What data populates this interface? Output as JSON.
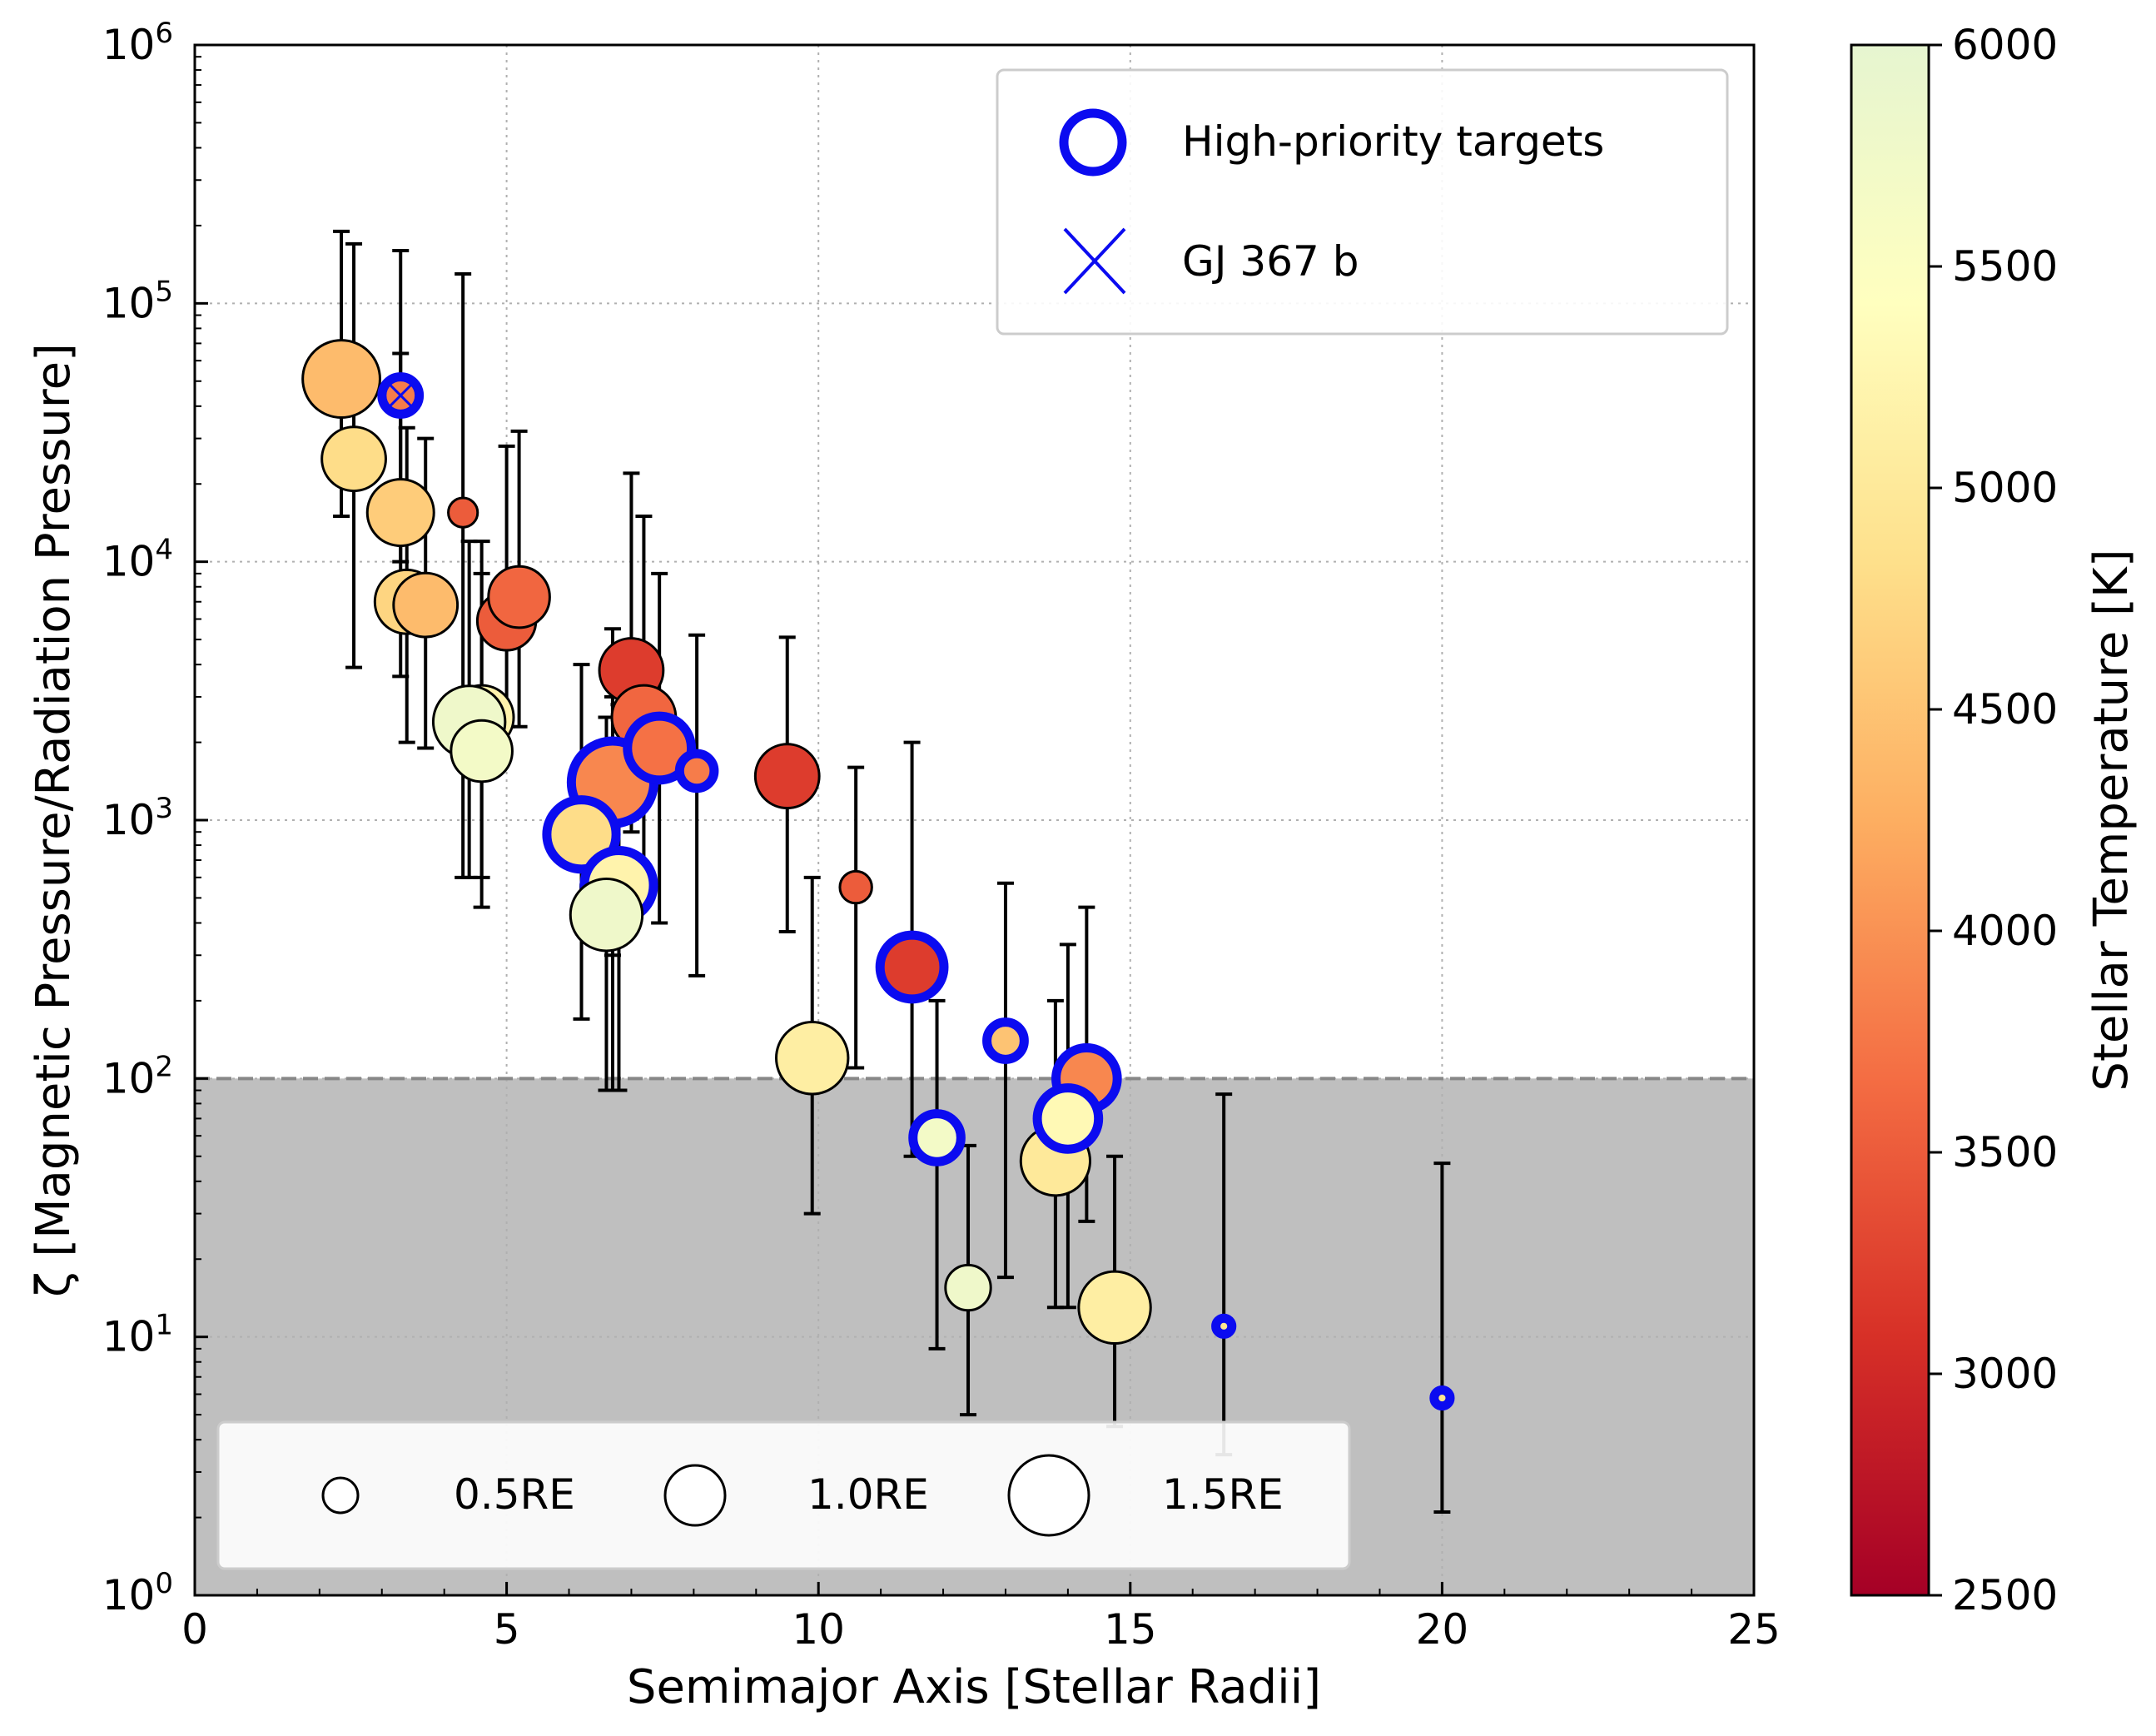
{
  "chart_data": {
    "type": "scatter",
    "xlabel": "Semimajor Axis [Stellar Radii]",
    "ylabel": "ζ [Magnetic Pressure/Radiation Pressure]",
    "xlim": [
      0,
      25
    ],
    "ylim": [
      1,
      1000000
    ],
    "yscale": "log",
    "grid": true,
    "threshold_line": 100,
    "x_ticks": [
      "0",
      "5",
      "10",
      "15",
      "20",
      "25"
    ],
    "y_ticks": [
      {
        "base": "10",
        "exp": "0"
      },
      {
        "base": "10",
        "exp": "1"
      },
      {
        "base": "10",
        "exp": "2"
      },
      {
        "base": "10",
        "exp": "3"
      },
      {
        "base": "10",
        "exp": "4"
      },
      {
        "base": "10",
        "exp": "5"
      },
      {
        "base": "10",
        "exp": "6"
      }
    ],
    "colorbar": {
      "label": "Stellar Temperature [K]",
      "min": 2500,
      "max": 6000,
      "ticks": [
        "2500",
        "3000",
        "3500",
        "4000",
        "4500",
        "5000",
        "5500",
        "6000"
      ],
      "stops": [
        "#a50026",
        "#d73027",
        "#f46d43",
        "#fdae61",
        "#fee08b",
        "#ffffbf",
        "#e6f5d0"
      ]
    },
    "legend_markers": {
      "high_priority": "High-priority targets",
      "gj367": "GJ 367 b",
      "location": "upper-right"
    },
    "size_legend": {
      "location": "lower-left",
      "items": [
        {
          "label": "0.5RE",
          "radius_re": 0.5
        },
        {
          "label": "1.0RE",
          "radius_re": 1.0
        },
        {
          "label": "1.5RE",
          "radius_re": 1.5
        }
      ]
    },
    "points": [
      {
        "x": 2.35,
        "y": 51000,
        "lo": 15000,
        "hi": 190000,
        "teff": 4400,
        "r_re": 1.45,
        "hp": false
      },
      {
        "x": 3.3,
        "y": 44000,
        "lo": 10000,
        "hi": 160000,
        "teff": 3800,
        "r_re": 0.7,
        "hp": true
      },
      {
        "x": 2.55,
        "y": 25000,
        "lo": 3900,
        "hi": 170000,
        "teff": 4800,
        "r_re": 1.2,
        "hp": false
      },
      {
        "x": 3.3,
        "y": 15500,
        "lo": 3600,
        "hi": 64000,
        "teff": 4600,
        "r_re": 1.25,
        "hp": false
      },
      {
        "x": 4.3,
        "y": 15500,
        "lo": 600,
        "hi": 130000,
        "teff": 3500,
        "r_re": 0.55,
        "hp": false
      },
      {
        "x": 3.4,
        "y": 7000,
        "lo": 2000,
        "hi": 33000,
        "teff": 4700,
        "r_re": 1.2,
        "hp": false
      },
      {
        "x": 3.7,
        "y": 6800,
        "lo": 1900,
        "hi": 30000,
        "teff": 4400,
        "r_re": 1.2,
        "hp": false
      },
      {
        "x": 5.0,
        "y": 5900,
        "lo": 2300,
        "hi": 28000,
        "teff": 3500,
        "r_re": 1.1,
        "hp": false
      },
      {
        "x": 5.2,
        "y": 7300,
        "lo": 2300,
        "hi": 32000,
        "teff": 3600,
        "r_re": 1.15,
        "hp": false
      },
      {
        "x": 4.6,
        "y": 2500,
        "lo": 600,
        "hi": 12000,
        "teff": 5200,
        "r_re": 1.2,
        "hp": false
      },
      {
        "x": 4.4,
        "y": 2400,
        "lo": 600,
        "hi": 12000,
        "teff": 5800,
        "r_re": 1.35,
        "hp": false
      },
      {
        "x": 4.6,
        "y": 1850,
        "lo": 460,
        "hi": 9000,
        "teff": 5700,
        "r_re": 1.15,
        "hp": false
      },
      {
        "x": 7.0,
        "y": 3800,
        "lo": 900,
        "hi": 22000,
        "teff": 3200,
        "r_re": 1.2,
        "hp": false
      },
      {
        "x": 7.2,
        "y": 2500,
        "lo": 500,
        "hi": 15000,
        "teff": 3600,
        "r_re": 1.2,
        "hp": false
      },
      {
        "x": 6.7,
        "y": 1400,
        "lo": 300,
        "hi": 5500,
        "teff": 3900,
        "r_re": 1.55,
        "hp": true
      },
      {
        "x": 7.45,
        "y": 1900,
        "lo": 400,
        "hi": 9000,
        "teff": 3700,
        "r_re": 1.2,
        "hp": true
      },
      {
        "x": 8.05,
        "y": 1550,
        "lo": 250,
        "hi": 5200,
        "teff": 3800,
        "r_re": 0.65,
        "hp": true
      },
      {
        "x": 6.2,
        "y": 880,
        "lo": 170,
        "hi": 4000,
        "teff": 4800,
        "r_re": 1.3,
        "hp": true
      },
      {
        "x": 6.7,
        "y": 550,
        "lo": 90,
        "hi": 3000,
        "teff": 5000,
        "r_re": 1.2,
        "hp": false
      },
      {
        "x": 6.8,
        "y": 560,
        "lo": 90,
        "hi": 2800,
        "teff": 5200,
        "r_re": 1.3,
        "hp": true
      },
      {
        "x": 6.6,
        "y": 430,
        "lo": 90,
        "hi": 2500,
        "teff": 5800,
        "r_re": 1.35,
        "hp": false
      },
      {
        "x": 9.5,
        "y": 1480,
        "lo": 370,
        "hi": 5100,
        "teff": 3200,
        "r_re": 1.2,
        "hp": false
      },
      {
        "x": 10.6,
        "y": 550,
        "lo": 110,
        "hi": 1600,
        "teff": 3500,
        "r_re": 0.6,
        "hp": false
      },
      {
        "x": 11.5,
        "y": 270,
        "lo": 50,
        "hi": 2000,
        "teff": 3200,
        "r_re": 1.2,
        "hp": true
      },
      {
        "x": 9.9,
        "y": 120,
        "lo": 30,
        "hi": 600,
        "teff": 5100,
        "r_re": 1.35,
        "hp": false
      },
      {
        "x": 13.0,
        "y": 140,
        "lo": 17,
        "hi": 570,
        "teff": 4500,
        "r_re": 0.7,
        "hp": true
      },
      {
        "x": 14.3,
        "y": 100,
        "lo": 28,
        "hi": 460,
        "teff": 3900,
        "r_re": 1.15,
        "hp": true
      },
      {
        "x": 13.8,
        "y": 48,
        "lo": 13,
        "hi": 200,
        "teff": 5000,
        "r_re": 1.3,
        "hp": false
      },
      {
        "x": 14.0,
        "y": 70,
        "lo": 13,
        "hi": 330,
        "teff": 5300,
        "r_re": 1.15,
        "hp": true
      },
      {
        "x": 11.9,
        "y": 59,
        "lo": 9,
        "hi": 200,
        "teff": 5700,
        "r_re": 0.9,
        "hp": true
      },
      {
        "x": 12.4,
        "y": 15.5,
        "lo": 5,
        "hi": 55,
        "teff": 5800,
        "r_re": 0.85,
        "hp": false
      },
      {
        "x": 14.75,
        "y": 13,
        "lo": 4.5,
        "hi": 50,
        "teff": 5100,
        "r_re": 1.35,
        "hp": false
      },
      {
        "x": 16.5,
        "y": 11,
        "lo": 3.5,
        "hi": 87,
        "teff": 4900,
        "r_re": 0.3,
        "hp": true
      },
      {
        "x": 20.0,
        "y": 5.8,
        "lo": 2.1,
        "hi": 47,
        "teff": 4900,
        "r_re": 0.3,
        "hp": true
      }
    ],
    "gj367_point": {
      "x": 3.3,
      "y": 44000
    }
  }
}
